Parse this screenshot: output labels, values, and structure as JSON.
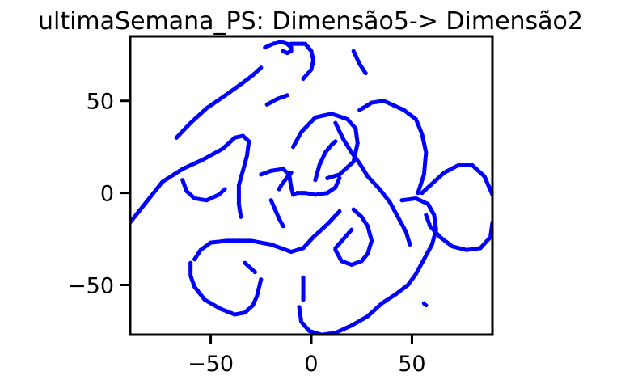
{
  "chart_data": {
    "type": "scatter",
    "title": "ultimaSemana_PS: Dimensão5-> Dimensão2",
    "xlabel": "",
    "ylabel": "",
    "xlim": [
      -90,
      90
    ],
    "ylim": [
      -77,
      85
    ],
    "xticks": [
      -50,
      0,
      50
    ],
    "yticks": [
      -50,
      0,
      50
    ],
    "xtick_labels": [
      "−50",
      "0",
      "50"
    ],
    "ytick_labels": [
      "−50",
      "0",
      "50"
    ],
    "grid": false,
    "marker_color": "#0000ff",
    "series": [
      {
        "x": [
          -90,
          -82,
          -74,
          -64,
          -54,
          -44,
          -38,
          -34,
          -31,
          -32,
          -34,
          -36,
          -36,
          -35
        ],
        "y": [
          -16,
          -5,
          6,
          13,
          18,
          24,
          30,
          31,
          28,
          20,
          12,
          4,
          -6,
          -13
        ]
      },
      {
        "x": [
          -67,
          -60,
          -52,
          -44,
          -35,
          -29,
          -25
        ],
        "y": [
          30,
          38,
          46,
          52,
          59,
          64,
          68
        ]
      },
      {
        "x": [
          -64,
          -62,
          -58,
          -52,
          -46,
          -43
        ],
        "y": [
          7,
          1,
          -3,
          -4,
          -1,
          2
        ]
      },
      {
        "x": [
          -23,
          -19,
          -15,
          -12,
          -10,
          -10,
          -12,
          -14
        ],
        "y": [
          79,
          81,
          82,
          81,
          79,
          77,
          76,
          77
        ]
      },
      {
        "x": [
          -10,
          -3,
          0,
          1,
          0,
          -4
        ],
        "y": [
          81,
          81,
          77,
          72,
          67,
          62
        ]
      },
      {
        "x": [
          -22,
          -17,
          -12
        ],
        "y": [
          48,
          51,
          53
        ]
      },
      {
        "x": [
          -25,
          -20,
          -14,
          -11,
          -10,
          -9,
          -7,
          -3,
          2,
          8,
          12,
          14
        ],
        "y": [
          10,
          12,
          13,
          10,
          3,
          -1,
          0,
          0,
          -1,
          0,
          3,
          8
        ]
      },
      {
        "x": [
          2,
          4,
          7,
          10,
          12
        ],
        "y": [
          7,
          15,
          22,
          26,
          28
        ]
      },
      {
        "x": [
          -9,
          -5,
          2,
          10,
          18,
          22,
          23,
          21,
          14,
          8
        ],
        "y": [
          25,
          33,
          41,
          43,
          40,
          35,
          27,
          17,
          10,
          8
        ]
      },
      {
        "x": [
          -10,
          -13,
          -15,
          -16
        ],
        "y": [
          11,
          7,
          4,
          2
        ]
      },
      {
        "x": [
          -20,
          -18,
          -16,
          -14
        ],
        "y": [
          -4,
          -9,
          -14,
          -18
        ]
      },
      {
        "x": [
          -58,
          -55,
          -50,
          -42,
          -30,
          -20,
          -10,
          -4,
          1,
          8,
          14
        ],
        "y": [
          -36,
          -31,
          -27,
          -26,
          -26,
          -28,
          -32,
          -30,
          -24,
          -17,
          -10
        ]
      },
      {
        "x": [
          -60,
          -60,
          -58,
          -53,
          -45,
          -38,
          -33,
          -29,
          -27,
          -25
        ],
        "y": [
          -38,
          -45,
          -51,
          -58,
          -63,
          -66,
          -65,
          -61,
          -56,
          -47
        ]
      },
      {
        "x": [
          -33,
          -31,
          -28
        ],
        "y": [
          -38,
          -40,
          -43
        ]
      },
      {
        "x": [
          -4,
          -4,
          -4
        ],
        "y": [
          -46,
          -52,
          -58
        ]
      },
      {
        "x": [
          -6,
          -5,
          -1,
          5,
          12,
          20,
          28,
          35,
          42
        ],
        "y": [
          -62,
          -70,
          -75,
          -77,
          -76,
          -72,
          -67,
          -60,
          -55
        ]
      },
      {
        "x": [
          42,
          48,
          52,
          56,
          60,
          62,
          61,
          58,
          52,
          45
        ],
        "y": [
          -55,
          -50,
          -44,
          -36,
          -28,
          -20,
          -12,
          -6,
          -3,
          -4
        ]
      },
      {
        "x": [
          49,
          47,
          43,
          39,
          34,
          28,
          24,
          20,
          16,
          12
        ],
        "y": [
          -28,
          -21,
          -13,
          -5,
          2,
          9,
          16,
          22,
          29,
          38
        ]
      },
      {
        "x": [
          24,
          30,
          36,
          40,
          46,
          52,
          55,
          57,
          56,
          53
        ],
        "y": [
          45,
          49,
          50,
          48,
          45,
          40,
          32,
          22,
          10,
          0
        ]
      },
      {
        "x": [
          12,
          15,
          20,
          25,
          28,
          30,
          28,
          25,
          21
        ],
        "y": [
          -31,
          -37,
          -39,
          -37,
          -33,
          -26,
          -18,
          -13,
          -9
        ]
      },
      {
        "x": [
          12,
          16,
          20
        ],
        "y": [
          -30,
          -25,
          -20
        ]
      },
      {
        "x": [
          55,
          60,
          66,
          73,
          80,
          86,
          90
        ],
        "y": [
          0,
          5,
          11,
          15,
          15,
          9,
          -1
        ]
      },
      {
        "x": [
          90,
          89,
          84,
          77,
          70,
          64,
          59,
          57
        ],
        "y": [
          -16,
          -24,
          -30,
          -31,
          -29,
          -24,
          -18,
          -12
        ]
      },
      {
        "x": [
          21,
          24,
          27
        ],
        "y": [
          77,
          70,
          65
        ]
      },
      {
        "x": [
          56,
          57
        ],
        "y": [
          -60,
          -61
        ]
      }
    ]
  }
}
